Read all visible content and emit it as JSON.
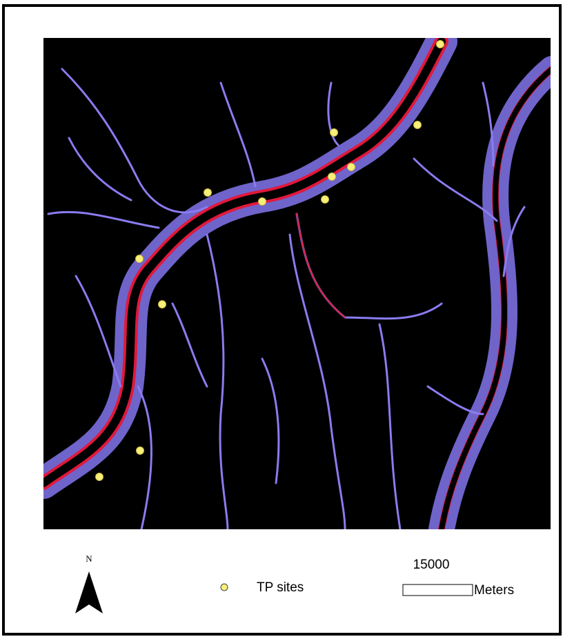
{
  "north_label": "N",
  "legend": {
    "label": "TP sites"
  },
  "scale_bar": {
    "distance": 15000,
    "units": "Meters"
  }
}
